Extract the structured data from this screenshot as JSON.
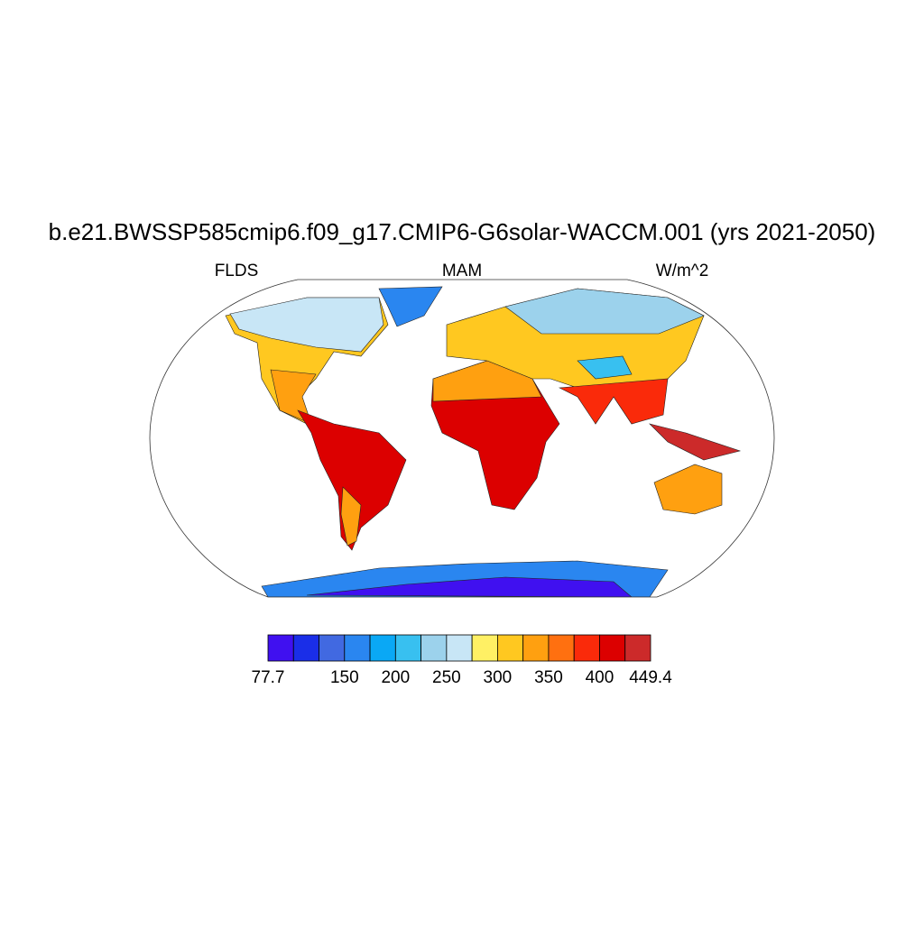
{
  "title": "b.e21.BWSSP585cmip6.f09_g17.CMIP6-G6solar-WACCM.001 (yrs 2021-2050)",
  "left_label": "FLDS",
  "center_label": "MAM",
  "right_label": "W/m^2",
  "colorbar": {
    "boundaries": [
      77.7,
      100,
      125,
      150,
      175,
      200,
      225,
      250,
      275,
      300,
      325,
      350,
      375,
      400,
      425,
      449.4
    ],
    "colors": [
      "#4010f0",
      "#1a2ee8",
      "#4169e1",
      "#2a86f0",
      "#0aa8f5",
      "#38c0f0",
      "#9cd2ec",
      "#c8e6f6",
      "#fff064",
      "#ffc820",
      "#ffa010",
      "#ff7010",
      "#fa2a0a",
      "#dc0000",
      "#cc2a2a"
    ],
    "tick_labels": [
      77.7,
      150,
      200,
      250,
      300,
      350,
      400,
      449.4
    ]
  }
}
